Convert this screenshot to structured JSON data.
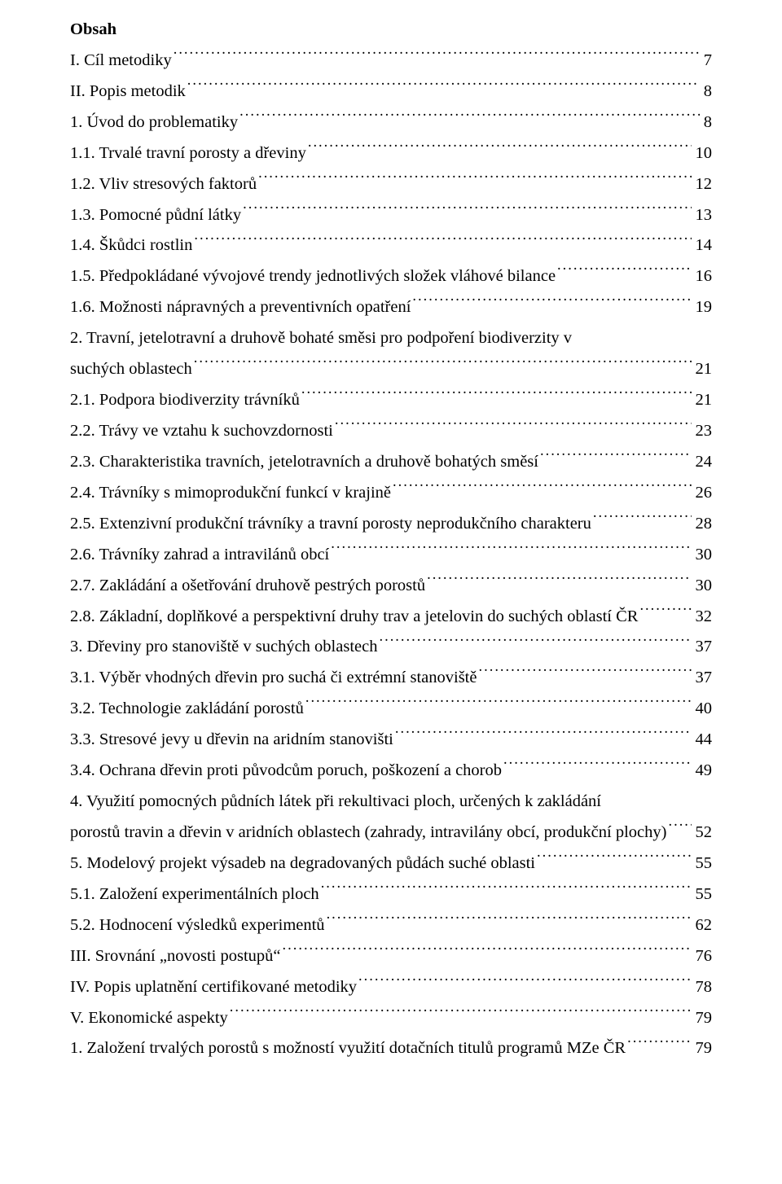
{
  "heading": "Obsah",
  "toc": [
    {
      "label": "I. Cíl metodiky",
      "page": "7",
      "leader": true
    },
    {
      "label": "II. Popis metodik",
      "page": "8",
      "leader": true
    },
    {
      "label": "1. Úvod do problematiky",
      "page": "8",
      "leader": true
    },
    {
      "label": "1.1. Trvalé travní porosty a dřeviny",
      "page": "10",
      "leader": true
    },
    {
      "label": "1.2. Vliv stresových faktorů",
      "page": "12",
      "leader": true
    },
    {
      "label": "1.3. Pomocné půdní látky",
      "page": "13",
      "leader": true
    },
    {
      "label": "1.4. Škůdci rostlin",
      "page": "14",
      "leader": true
    },
    {
      "label": "1.5. Předpokládané vývojové trendy jednotlivých složek vláhové bilance",
      "page": "16",
      "leader": true
    },
    {
      "label": "1.6. Možnosti nápravných a preventivních opatření",
      "page": "19",
      "leader": true
    },
    {
      "label": "2. Travní, jetelotravní a druhově bohaté směsi pro podpoření biodiverzity v suchých oblastech",
      "page": "21",
      "leader": true,
      "wrap": true
    },
    {
      "label": "2.1. Podpora biodiverzity trávníků",
      "page": "21",
      "leader": true
    },
    {
      "label": "2.2. Trávy ve vztahu k suchovzdornosti",
      "page": "23",
      "leader": true
    },
    {
      "label": "2.3. Charakteristika travních, jetelotravních a druhově bohatých směsí",
      "page": "24",
      "leader": true
    },
    {
      "label": "2.4. Trávníky s mimoprodukční funkcí v krajině",
      "page": "26",
      "leader": true
    },
    {
      "label": "2.5. Extenzivní produkční trávníky a travní porosty neprodukčního charakteru",
      "page": "28",
      "leader": true
    },
    {
      "label": "2.6. Trávníky zahrad a intravilánů obcí",
      "page": "30",
      "leader": true
    },
    {
      "label": "2.7. Zakládání a ošetřování druhově pestrých porostů",
      "page": "30",
      "leader": true
    },
    {
      "label": "2.8. Základní, doplňkové a perspektivní druhy trav a jetelovin do suchých oblastí ČR",
      "page": "32",
      "leader": true
    },
    {
      "label": "3. Dřeviny pro stanoviště v suchých oblastech",
      "page": "37",
      "leader": true
    },
    {
      "label": "3.1. Výběr vhodných dřevin pro suchá či extrémní stanoviště",
      "page": "37",
      "leader": true
    },
    {
      "label": "3.2. Technologie zakládání porostů",
      "page": "40",
      "leader": true
    },
    {
      "label": "3.3. Stresové jevy u dřevin na aridním stanovišti",
      "page": "44",
      "leader": true
    },
    {
      "label": "3.4. Ochrana dřevin proti původcům poruch, poškození a chorob",
      "page": "49",
      "leader": true
    },
    {
      "label": "4. Využití pomocných půdních látek při rekultivaci ploch, určených k zakládání porostů travin a dřevin v aridních oblastech (zahrady, intravilány obcí, produkční plochy)",
      "page": "52",
      "leader": true,
      "wrap": true
    },
    {
      "label": "5. Modelový projekt výsadeb na degradovaných půdách suché oblasti",
      "page": "55",
      "leader": true
    },
    {
      "label": "5.1. Založení experimentálních ploch",
      "page": "55",
      "leader": true
    },
    {
      "label": "5.2. Hodnocení výsledků experimentů",
      "page": "62",
      "leader": true
    },
    {
      "label": "III. Srovnání „novosti postupů“",
      "page": "76",
      "leader": true
    },
    {
      "label": "IV. Popis uplatnění certifikované metodiky",
      "page": "78",
      "leader": true
    },
    {
      "label": "V. Ekonomické aspekty",
      "page": "79",
      "leader": true
    },
    {
      "label": "1. Založení trvalých porostů s možností využití dotačních titulů programů MZe ČR",
      "page": "79",
      "leader": true
    }
  ]
}
